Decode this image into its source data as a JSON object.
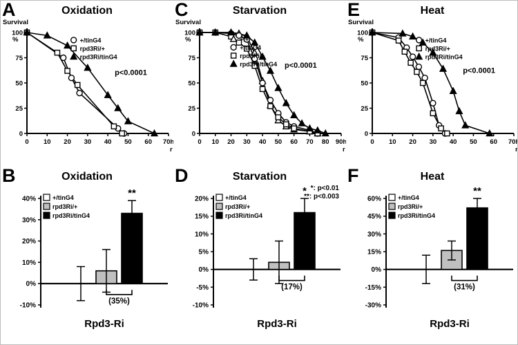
{
  "chart_data": [
    {
      "panel": "A",
      "type": "line",
      "title": "Oxidation",
      "ylabel": "Survival",
      "ylabel_unit": "%",
      "x_unit_line1": "h",
      "x_unit_line2": "r",
      "p_label": "p<0.0001",
      "xlim": [
        0,
        70
      ],
      "xticks": [
        0,
        10,
        20,
        30,
        40,
        50,
        60,
        70
      ],
      "ylim": [
        0,
        100
      ],
      "yticks": [
        0,
        25,
        50,
        75,
        100
      ],
      "legend_pos": [
        0.33,
        0.02
      ],
      "p_pos": [
        0.62,
        0.42
      ],
      "series": [
        {
          "name": "+/tinG4",
          "marker": "circle-open",
          "x": [
            0,
            18,
            22,
            26,
            45,
            48
          ],
          "y": [
            100,
            75,
            55,
            40,
            5,
            0
          ]
        },
        {
          "name": "rpd3Ri/+",
          "marker": "square-open",
          "x": [
            0,
            15,
            20,
            25,
            43,
            47
          ],
          "y": [
            100,
            80,
            62,
            48,
            7,
            0
          ]
        },
        {
          "name": "rpd3Ri/tinG4",
          "marker": "triangle-filled",
          "x": [
            0,
            10,
            20,
            30,
            40,
            45,
            50,
            63
          ],
          "y": [
            100,
            97,
            87,
            65,
            38,
            25,
            12,
            0
          ]
        }
      ]
    },
    {
      "panel": "C",
      "type": "line",
      "title": "Starvation",
      "ylabel": "Survival",
      "ylabel_unit": "%",
      "x_unit_line1": "h",
      "x_unit_line2": "r",
      "p_label": "p<0.0001",
      "xlim": [
        0,
        90
      ],
      "xticks": [
        0,
        10,
        20,
        30,
        40,
        50,
        60,
        70,
        80,
        90
      ],
      "ylim": [
        0,
        100
      ],
      "yticks": [
        0,
        25,
        50,
        75,
        100
      ],
      "legend_pos": [
        0.24,
        0.01
      ],
      "p_pos": [
        0.6,
        0.35
      ],
      "series": [
        {
          "name": "+/+",
          "marker": "triangle-open",
          "x": [
            0,
            10,
            20,
            25,
            30,
            35,
            40,
            45,
            50,
            55,
            60,
            70,
            75
          ],
          "y": [
            100,
            100,
            100,
            99,
            96,
            80,
            52,
            28,
            13,
            7,
            4,
            2,
            0
          ]
        },
        {
          "name": "+/tinG4",
          "marker": "circle-open",
          "x": [
            0,
            10,
            20,
            25,
            30,
            35,
            40,
            45,
            50,
            55,
            60,
            70,
            75
          ],
          "y": [
            100,
            100,
            99,
            97,
            93,
            74,
            50,
            33,
            20,
            11,
            7,
            3,
            0
          ]
        },
        {
          "name": "rpd3Ri/+",
          "marker": "square-open",
          "x": [
            0,
            10,
            20,
            25,
            30,
            35,
            40,
            45,
            50,
            55,
            60,
            70,
            75
          ],
          "y": [
            100,
            100,
            96,
            90,
            84,
            67,
            44,
            27,
            16,
            9,
            5,
            2,
            0
          ]
        },
        {
          "name": "rpd3Ri/tinG4",
          "marker": "triangle-filled",
          "x": [
            0,
            10,
            20,
            30,
            35,
            40,
            45,
            50,
            55,
            60,
            65,
            70,
            75,
            80
          ],
          "y": [
            100,
            100,
            100,
            97,
            90,
            76,
            62,
            45,
            30,
            18,
            10,
            5,
            3,
            0
          ]
        }
      ]
    },
    {
      "panel": "E",
      "type": "line",
      "title": "Heat",
      "ylabel": "Survival",
      "ylabel_unit": "%",
      "x_unit_line1": "h",
      "x_unit_line2": "r",
      "p_label": "p<0.0001",
      "xlim": [
        0,
        70
      ],
      "xticks": [
        0,
        10,
        20,
        30,
        40,
        50,
        60,
        70
      ],
      "ylim": [
        0,
        100
      ],
      "yticks": [
        0,
        25,
        50,
        75,
        100
      ],
      "legend_pos": [
        0.33,
        0.02
      ],
      "p_pos": [
        0.64,
        0.4
      ],
      "series": [
        {
          "name": "+/tinG4",
          "marker": "circle-open",
          "x": [
            0,
            13,
            17,
            20,
            23,
            26,
            30,
            33,
            36
          ],
          "y": [
            100,
            95,
            85,
            76,
            66,
            55,
            30,
            8,
            0
          ]
        },
        {
          "name": "rpd3Ri/+",
          "marker": "square-open",
          "x": [
            0,
            13,
            16,
            19,
            22,
            25,
            30,
            34,
            37
          ],
          "y": [
            100,
            92,
            81,
            70,
            61,
            50,
            20,
            5,
            0
          ]
        },
        {
          "name": "rpd3Ri/tinG4",
          "marker": "triangle-filled",
          "x": [
            0,
            15,
            20,
            25,
            30,
            35,
            40,
            43,
            46,
            58
          ],
          "y": [
            100,
            99,
            96,
            90,
            80,
            64,
            42,
            22,
            8,
            0
          ]
        }
      ]
    },
    {
      "panel": "B",
      "type": "bar",
      "title": "Oxidation",
      "categories": [
        "+/tinG4",
        "rpd3Ri/+",
        "rpd3Ri/tinG4"
      ],
      "values": [
        0,
        6,
        33
      ],
      "errors": [
        8,
        10,
        6
      ],
      "sig": [
        "",
        "",
        "**"
      ],
      "colors": [
        "#ffffff",
        "#c0c0c0",
        "#000000"
      ],
      "legend": [
        {
          "label": "+/tinG4",
          "fill": "#ffffff"
        },
        {
          "label": "rpd3Ri/+",
          "fill": "#c0c0c0"
        },
        {
          "label": "rpd3Ri/tinG4",
          "fill": "#000000"
        }
      ],
      "ylim": [
        -10,
        40
      ],
      "ytick_step": 10,
      "bracket_label": "(35%)",
      "xlabel": "Rpd3-Ri"
    },
    {
      "panel": "D",
      "type": "bar",
      "title": "Starvation",
      "categories": [
        "+/tinG4",
        "rpd3Ri/+",
        "rpd3Ri/tinG4"
      ],
      "values": [
        0,
        2,
        16
      ],
      "errors": [
        3,
        6,
        4
      ],
      "sig": [
        "",
        "",
        "*"
      ],
      "colors": [
        "#ffffff",
        "#c0c0c0",
        "#000000"
      ],
      "legend": [
        {
          "label": "+/tinG4",
          "fill": "#ffffff"
        },
        {
          "label": "rpd3Ri/+",
          "fill": "#c0c0c0"
        },
        {
          "label": "rpd3Ri/tinG4",
          "fill": "#000000"
        }
      ],
      "note_lines": [
        "*: p<0.01",
        "**: p<0.003"
      ],
      "ylim": [
        -10,
        20
      ],
      "ytick_step": 5,
      "bracket_label": "(17%)",
      "xlabel": "Rpd3-Ri"
    },
    {
      "panel": "F",
      "type": "bar",
      "title": "Heat",
      "categories": [
        "+/tinG4",
        "rpd3Ri/+",
        "rpd3Ri/tinG4"
      ],
      "values": [
        0,
        16,
        52
      ],
      "errors": [
        12,
        8,
        8
      ],
      "sig": [
        "",
        "",
        "**"
      ],
      "colors": [
        "#ffffff",
        "#c0c0c0",
        "#000000"
      ],
      "legend": [
        {
          "label": "+/tinG4",
          "fill": "#ffffff"
        },
        {
          "label": "rpd3Ri/+",
          "fill": "#c0c0c0"
        },
        {
          "label": "rpd3Ri/tinG4",
          "fill": "#000000"
        }
      ],
      "ylim": [
        -30,
        60
      ],
      "ytick_step": 15,
      "bracket_label": "(31%)",
      "xlabel": "Rpd3-Ri"
    }
  ]
}
